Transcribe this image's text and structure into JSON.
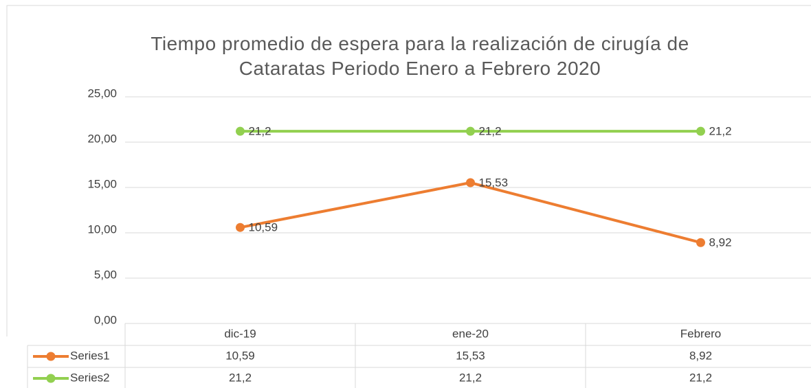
{
  "chart_data": {
    "type": "line",
    "title": "Tiempo promedio de espera para la realización de cirugía de Cataratas Periodo Enero a Febrero 2020",
    "categories": [
      "dic-19",
      "ene-20",
      "Febrero"
    ],
    "series": [
      {
        "name": "Series1",
        "color": "#ED7D31",
        "values": [
          10.59,
          15.53,
          8.92
        ],
        "value_labels": [
          "10,59",
          "15,53",
          "8,92"
        ]
      },
      {
        "name": "Series2",
        "color": "#92D050",
        "values": [
          21.2,
          21.2,
          21.2
        ],
        "value_labels": [
          "21,2",
          "21,2",
          "21,2"
        ]
      }
    ],
    "ylim": [
      0,
      25
    ],
    "yticks": [
      {
        "value": 0,
        "label": "0,00"
      },
      {
        "value": 5,
        "label": "5,00"
      },
      {
        "value": 10,
        "label": "10,00"
      },
      {
        "value": 15,
        "label": "15,00"
      },
      {
        "value": 20,
        "label": "20,00"
      },
      {
        "value": 25,
        "label": "25,00"
      }
    ],
    "grid": true,
    "data_table": true
  }
}
